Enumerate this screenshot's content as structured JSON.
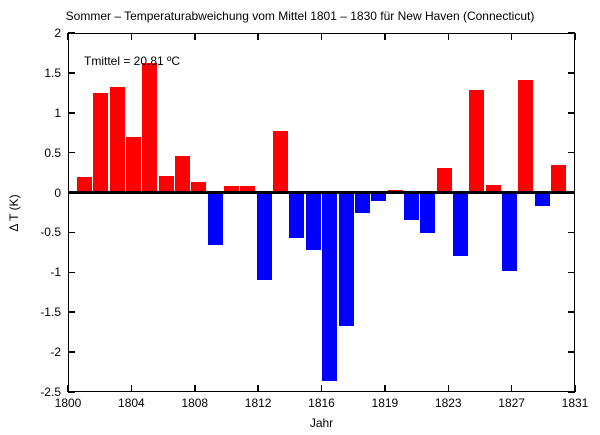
{
  "chart_data": {
    "type": "bar",
    "title": "Sommer – Temperaturabweichung vom Mittel 1801 – 1830 für New Haven (Connecticut)",
    "xlabel": "Jahr",
    "ylabel": "Δ T (K)",
    "annotation": "Tmittel = 20.81 ºC",
    "years": [
      1801,
      1802,
      1803,
      1804,
      1805,
      1806,
      1807,
      1808,
      1809,
      1810,
      1811,
      1812,
      1813,
      1814,
      1815,
      1816,
      1817,
      1818,
      1819,
      1820,
      1821,
      1822,
      1823,
      1824,
      1825,
      1826,
      1827,
      1828,
      1829,
      1830
    ],
    "values": [
      0.19,
      1.25,
      1.32,
      0.7,
      1.62,
      0.21,
      0.46,
      0.13,
      -0.66,
      0.08,
      0.08,
      -1.1,
      0.77,
      -0.57,
      -0.72,
      -2.36,
      -1.67,
      -0.26,
      -0.11,
      0.03,
      -0.34,
      -0.51,
      0.31,
      -0.79,
      1.29,
      0.09,
      -0.98,
      1.41,
      -0.17,
      0.35
    ],
    "xlim": [
      1800,
      1831
    ],
    "ylim": [
      -2.5,
      2
    ],
    "xtick_labels": [
      "1800",
      "1804",
      "1808",
      "1812",
      "1816",
      "1819",
      "1823",
      "1827",
      "1831"
    ],
    "ytick_values": [
      2,
      1.5,
      1,
      0.5,
      0,
      -0.5,
      -1,
      -1.5,
      -2,
      -2.5
    ],
    "ytick_labels": [
      "2",
      "1.5",
      "1",
      "0.5",
      "0",
      "-0.5",
      "-1",
      "-1.5",
      "-2",
      "-2.5"
    ],
    "grid": false,
    "legend": null,
    "colors": {
      "positive": "#ff0000",
      "negative": "#0000ff",
      "axis": "#000000",
      "background": "#ffffff"
    }
  }
}
